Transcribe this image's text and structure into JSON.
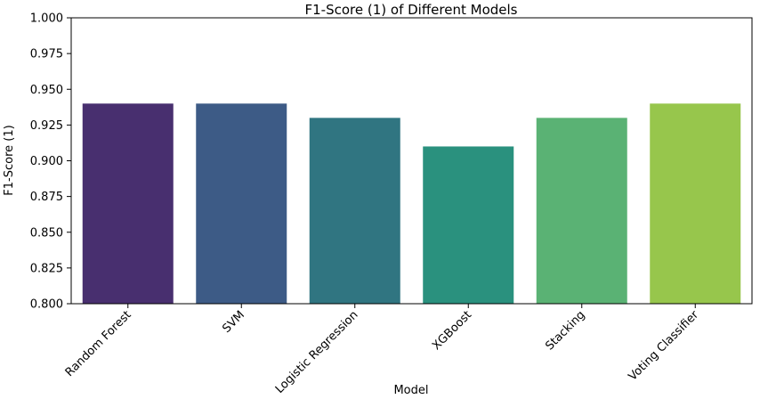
{
  "chart_data": {
    "type": "bar",
    "title": "F1-Score (1) of Different Models",
    "xlabel": "Model",
    "ylabel": "F1-Score (1)",
    "categories": [
      "Random Forest",
      "SVM",
      "Logistic Regression",
      "XGBoost",
      "Stacking",
      "Voting Classifier"
    ],
    "values": [
      0.94,
      0.94,
      0.93,
      0.91,
      0.93,
      0.94
    ],
    "colors": [
      "#482f6f",
      "#3d5b86",
      "#307581",
      "#2a917e",
      "#5ab274",
      "#97c64c"
    ],
    "ylim": [
      0.8,
      1.0
    ],
    "yticks": [
      "0.800",
      "0.825",
      "0.850",
      "0.875",
      "0.900",
      "0.925",
      "0.950",
      "0.975",
      "1.000"
    ],
    "grid": false,
    "legend": "none"
  }
}
